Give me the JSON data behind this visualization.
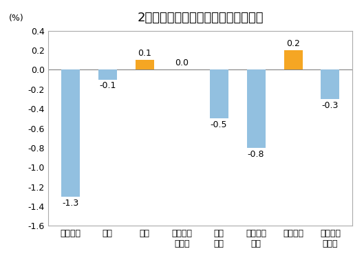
{
  "title": "2月份居民消费价格分类别环比涨跌幅",
  "ylabel": "(%)",
  "categories": [
    "食品烟酒",
    "衣着",
    "居住",
    "生活用品\n及服务",
    "交通\n通信",
    "教育文化\n娱乐",
    "医疗保健",
    "其他用品\n及服务"
  ],
  "values": [
    -1.3,
    -0.1,
    0.1,
    0.0,
    -0.5,
    -0.8,
    0.2,
    -0.3
  ],
  "bar_colors": [
    "#92c0e0",
    "#92c0e0",
    "#f5a623",
    "#92c0e0",
    "#92c0e0",
    "#92c0e0",
    "#f5a623",
    "#92c0e0"
  ],
  "ylim": [
    -1.6,
    0.4
  ],
  "yticks": [
    -1.6,
    -1.4,
    -1.2,
    -1.0,
    -0.8,
    -0.6,
    -0.4,
    -0.2,
    0.0,
    0.2,
    0.4
  ],
  "background_color": "#ffffff",
  "plot_bg_color": "#ffffff",
  "title_fontsize": 13,
  "label_fontsize": 9,
  "tick_fontsize": 9,
  "ylabel_fontsize": 9
}
